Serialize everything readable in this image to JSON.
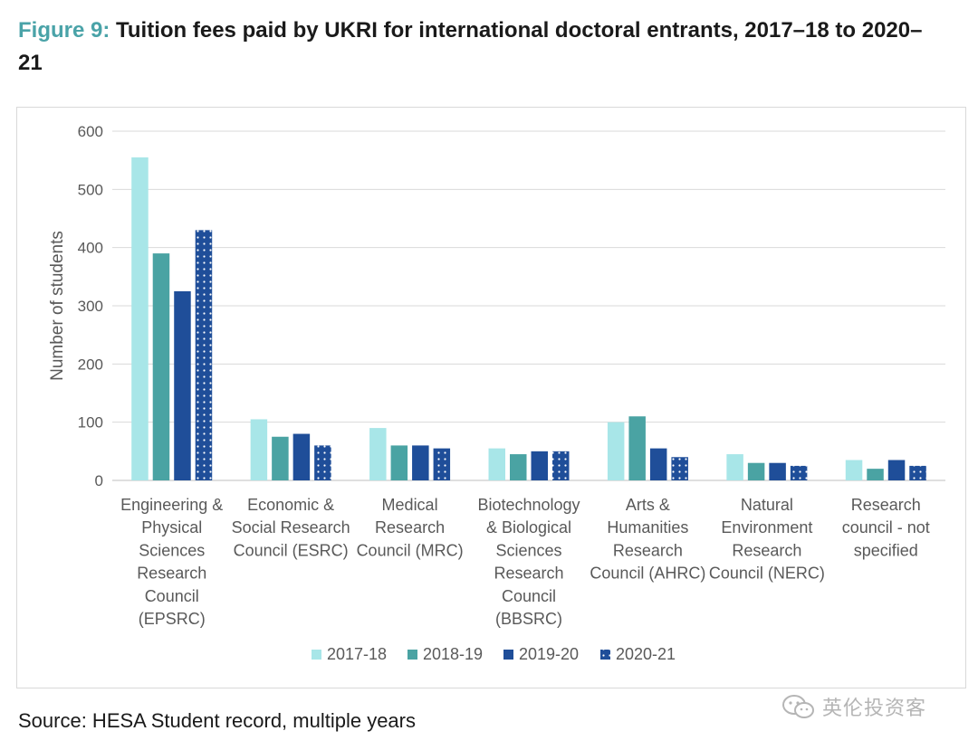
{
  "title": {
    "label": "Figure 9:",
    "text": "Tuition fees paid by UKRI for international doctoral entrants, 2017–18 to 2020–21"
  },
  "source": "Source: HESA Student record, multiple years",
  "watermark": {
    "text": "英伦投资客",
    "icon": "wechat-icon"
  },
  "chart_data": {
    "type": "bar",
    "xlabel": "",
    "ylabel": "Number of students",
    "ylim": [
      0,
      600
    ],
    "yticks": [
      0,
      100,
      200,
      300,
      400,
      500,
      600
    ],
    "grid": true,
    "legend_position": "bottom",
    "categories": [
      [
        "Engineering &",
        "Physical",
        "Sciences",
        "Research",
        "Council",
        "(EPSRC)"
      ],
      [
        "Economic &",
        "Social Research",
        "Council (ESRC)"
      ],
      [
        "Medical",
        "Research",
        "Council (MRC)"
      ],
      [
        "Biotechnology",
        "& Biological",
        "Sciences",
        "Research",
        "Council",
        "(BBSRC)"
      ],
      [
        "Arts &",
        "Humanities",
        "Research",
        "Council (AHRC)"
      ],
      [
        "Natural",
        "Environment",
        "Research",
        "Council (NERC)"
      ],
      [
        "Research",
        "council - not",
        "specified"
      ]
    ],
    "series": [
      {
        "name": "2017-18",
        "color": "#a8e6e8",
        "pattern": "solid",
        "values": [
          555,
          105,
          90,
          55,
          100,
          45,
          35
        ]
      },
      {
        "name": "2018-19",
        "color": "#4aa3a3",
        "pattern": "solid",
        "values": [
          390,
          75,
          60,
          45,
          110,
          30,
          20
        ]
      },
      {
        "name": "2019-20",
        "color": "#1f4e99",
        "pattern": "solid",
        "values": [
          325,
          80,
          60,
          50,
          55,
          30,
          35
        ]
      },
      {
        "name": "2020-21",
        "color": "#1f4e99",
        "pattern": "dotted",
        "values": [
          430,
          60,
          55,
          50,
          40,
          25,
          25
        ]
      }
    ]
  }
}
